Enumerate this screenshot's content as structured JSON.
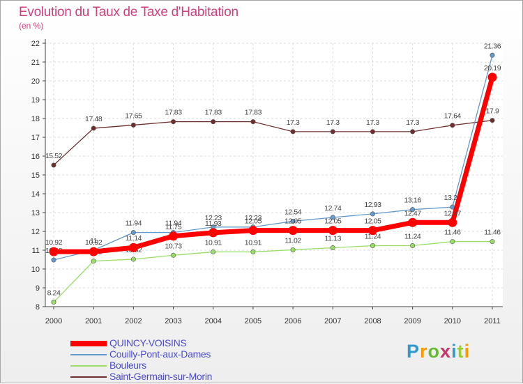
{
  "chart_data": {
    "type": "line",
    "title": "Evolution du Taux de Taxe d'Habitation",
    "ylabel": "(en %)",
    "xlabel": "",
    "ylim": [
      8,
      22
    ],
    "yticks": [
      "8",
      "9",
      "10",
      "11",
      "12",
      "13",
      "14",
      "15",
      "16",
      "17",
      "18",
      "19",
      "20",
      "21",
      "22"
    ],
    "categories": [
      "2000",
      "2001",
      "2002",
      "2003",
      "2004",
      "2005",
      "2006",
      "2007",
      "2008",
      "2009",
      "2010",
      "2011"
    ],
    "series": [
      {
        "name": "Saint-Germain-sur-Morin",
        "color": "#6e2e2e",
        "values": [
          15.52,
          17.48,
          17.65,
          17.83,
          17.83,
          17.83,
          17.3,
          17.3,
          17.3,
          17.3,
          17.64,
          17.9
        ],
        "labels": [
          "15.52",
          "17.48",
          "17.65",
          "17.83",
          "17.83",
          "17.83",
          "17.3",
          "17.3",
          "17.3",
          "17.3",
          "17.64",
          "17.9"
        ]
      },
      {
        "name": "Bouleurs",
        "color": "#99dd66",
        "values": [
          8.24,
          10.42,
          10.52,
          10.73,
          10.91,
          10.91,
          11.02,
          11.13,
          11.24,
          11.24,
          11.46,
          11.46
        ],
        "labels": [
          "8.24",
          "10.42",
          "10.52",
          "10.73",
          "10.91",
          "10.91",
          "11.02",
          "11.13",
          "11.24",
          "11.24",
          "11.46",
          "11.46"
        ]
      },
      {
        "name": "Couilly-Pont-aux-Dames",
        "color": "#6699cc",
        "values": [
          10.48,
          11.0,
          11.94,
          11.94,
          12.23,
          12.23,
          12.54,
          12.74,
          12.93,
          13.16,
          13.29,
          21.36
        ],
        "labels": [
          "10.48",
          "11",
          "11.94",
          "11.94",
          "12.23",
          "12.23",
          "12.54",
          "12.74",
          "12.93",
          "13.16",
          "13.29",
          "21.36"
        ]
      },
      {
        "name": "QUINCY-VOISINS",
        "color": "#ff0000",
        "values": [
          10.92,
          10.92,
          11.14,
          11.75,
          11.93,
          12.05,
          12.05,
          12.05,
          12.05,
          12.47,
          12.47,
          20.19
        ],
        "labels": [
          "10.92",
          "10.92",
          "11.14",
          "11.75",
          "11.93",
          "12.05",
          "12.05",
          "12.05",
          "12.05",
          "12.47",
          "12.47",
          "20.19"
        ]
      }
    ],
    "legend": [
      "QUINCY-VOISINS",
      "Couilly-Pont-aux-Dames",
      "Bouleurs",
      "Saint-Germain-sur-Morin"
    ],
    "legend_position": "bottom-left",
    "grid": true
  },
  "brand": "Proxiti"
}
